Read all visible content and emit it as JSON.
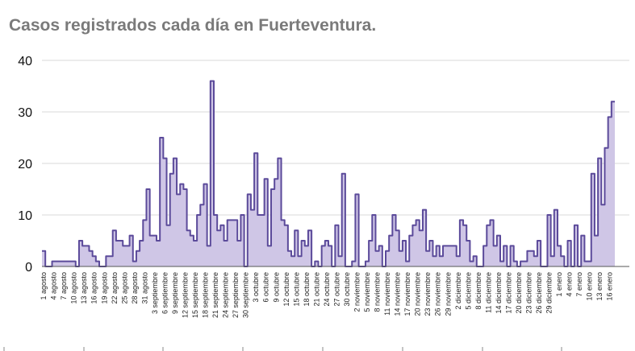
{
  "title": "Casos registrados cada día en Fuerteventura.",
  "chart_data": {
    "type": "area",
    "title": "Casos registrados cada día en Fuerteventura.",
    "xlabel": "",
    "ylabel": "",
    "ylim": [
      0,
      40
    ],
    "yticks": [
      0,
      10,
      20,
      30,
      40
    ],
    "grid": true,
    "legend": "none",
    "colors": {
      "line": "#5b4a9a",
      "fill": "#cfc6e6",
      "grid": "#d9d9d9",
      "axis": "#555555"
    },
    "x_tick_labels": [
      "1 agosto",
      "4 agosto",
      "7 agosto",
      "10 agosto",
      "13 agosto",
      "16 agosto",
      "19 agosto",
      "22 agosto",
      "25 agosto",
      "28 agosto",
      "31 agosto",
      "3 septiembre",
      "6 septiembre",
      "9 septiembre",
      "12 septiembre",
      "15 septiembre",
      "18 septiembre",
      "21 septiembre",
      "24 septiembre",
      "27 septiembre",
      "30 septiembre",
      "3 octubre",
      "6 octubre",
      "9 octubre",
      "12 octubre",
      "15 octubre",
      "18 octubre",
      "21 octubre",
      "24 octubre",
      "27 octubre",
      "30 octubre",
      "2 noviembre",
      "5 noviembre",
      "8 noviembre",
      "11 noviembre",
      "14 noviembre",
      "17 noviembre",
      "20 noviembre",
      "23 noviembre",
      "26 noviembre",
      "29 noviembre",
      "2 diciembre",
      "5 diciembre",
      "8 diciembre",
      "11 diciembre",
      "14 diciembre",
      "17 diciembre",
      "20 diciembre",
      "23 diciembre",
      "26 diciembre",
      "29 diciembre",
      "1 enero",
      "4 enero",
      "7 enero",
      "10 enero",
      "13 enero",
      "16 enero"
    ],
    "values": [
      3,
      0,
      0,
      1,
      1,
      1,
      1,
      1,
      1,
      1,
      0,
      5,
      4,
      4,
      3,
      2,
      1,
      0,
      0,
      2,
      2,
      7,
      5,
      5,
      4,
      4,
      6,
      1,
      3,
      5,
      9,
      15,
      6,
      6,
      5,
      25,
      21,
      8,
      18,
      21,
      14,
      16,
      15,
      7,
      6,
      5,
      10,
      12,
      16,
      4,
      36,
      10,
      7,
      8,
      5,
      9,
      9,
      9,
      5,
      10,
      0,
      14,
      11,
      22,
      10,
      10,
      17,
      4,
      15,
      17,
      21,
      9,
      8,
      3,
      2,
      7,
      2,
      5,
      4,
      7,
      0,
      1,
      0,
      4,
      5,
      4,
      0,
      8,
      2,
      18,
      0,
      0,
      1,
      14,
      0,
      0,
      1,
      5,
      10,
      3,
      4,
      0,
      3,
      6,
      10,
      7,
      3,
      5,
      1,
      6,
      8,
      9,
      7,
      11,
      3,
      5,
      2,
      4,
      2,
      4,
      4,
      4,
      4,
      2,
      9,
      8,
      5,
      1,
      2,
      0,
      0,
      4,
      8,
      9,
      4,
      6,
      1,
      4,
      0,
      4,
      1,
      0,
      1,
      1,
      3,
      3,
      2,
      5,
      0,
      0,
      10,
      2,
      11,
      4,
      2,
      0,
      5,
      0,
      8,
      0,
      6,
      1,
      1,
      18,
      6,
      21,
      12,
      23,
      29,
      32
    ]
  }
}
